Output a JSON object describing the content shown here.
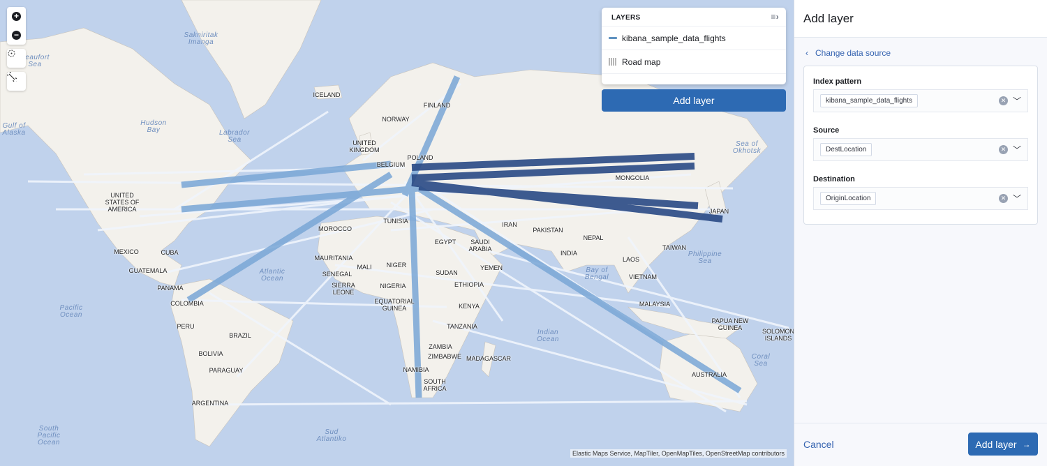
{
  "map": {
    "labels": [
      "ICELAND",
      "FINLAND",
      "NORWAY",
      "UNITED\nKINGDOM",
      "POLAND",
      "MONGOLIA",
      "UNITED\nSTATES OF\nAMERICA",
      "JAPAN",
      "TUNISIA",
      "MOROCCO",
      "IRAN",
      "PAKISTAN",
      "NEPAL",
      "EGYPT",
      "SAUDI\nARABIA",
      "MEXICO",
      "CUBA",
      "INDIA",
      "TAIWAN",
      "MAURITANIA",
      "NIGER",
      "YEMEN",
      "SUDAN",
      "GUATEMALA",
      "LAOS",
      "SENEGAL",
      "VIETNAM",
      "PANAMA",
      "SIERRA\nLEONE",
      "NIGERIA",
      "ETHIOPIA",
      "COLOMBIA",
      "EQUATORIAL\nGUINEA",
      "KENYA",
      "MALAYSIA",
      "PAPUA NEW\nGUINEA",
      "SOLOMON\nISLANDS",
      "PERU",
      "TANZANIA",
      "BRAZIL",
      "ZAMBIA",
      "BOLIVIA",
      "ZIMBABWE",
      "MADAGASCAR",
      "NAMIBIA",
      "PARAGUAY",
      "AUSTRALIA",
      "SOUTH\nAFRICA",
      "ARGENTINA",
      "BELGIUM",
      "MALI"
    ],
    "oceans": [
      "Sakniritak\nImanga",
      "Beaufort\nSea",
      "Gulf of\nAlaska",
      "Hudson\nBay",
      "Labrador\nSea",
      "Atlantic\nOcean",
      "Pacific\nOcean",
      "Indian\nOcean",
      "Sea of\nOkhotsk",
      "Bay of\nBengal",
      "Philippine\nSea",
      "Coral\nSea",
      "South\nPacific\nOcean",
      "Sud\nAtlantiko"
    ],
    "attribution": "Elastic Maps Service, MapTiler, OpenMapTiles, OpenStreetMap contributors",
    "colors": {
      "water": "#c0d2ec",
      "land": "#f3f1ec",
      "flight_dark": "#2a4a85",
      "flight_mid": "#7aa7d6",
      "flight_light": "#f0f5fc"
    }
  },
  "controls": {
    "zoom_in": "+",
    "zoom_out": "−"
  },
  "layers": {
    "title": "LAYERS",
    "items": [
      {
        "name": "kibana_sample_data_flights",
        "icon": "line-icon"
      },
      {
        "name": "Road map",
        "icon": "tile-grid-icon"
      }
    ],
    "add_layer": "Add layer"
  },
  "panel": {
    "title": "Add layer",
    "back": "Change data source",
    "fields": [
      {
        "label": "Index pattern",
        "value": "kibana_sample_data_flights"
      },
      {
        "label": "Source",
        "value": "DestLocation"
      },
      {
        "label": "Destination",
        "value": "OriginLocation"
      }
    ],
    "cancel": "Cancel",
    "submit": "Add layer"
  }
}
